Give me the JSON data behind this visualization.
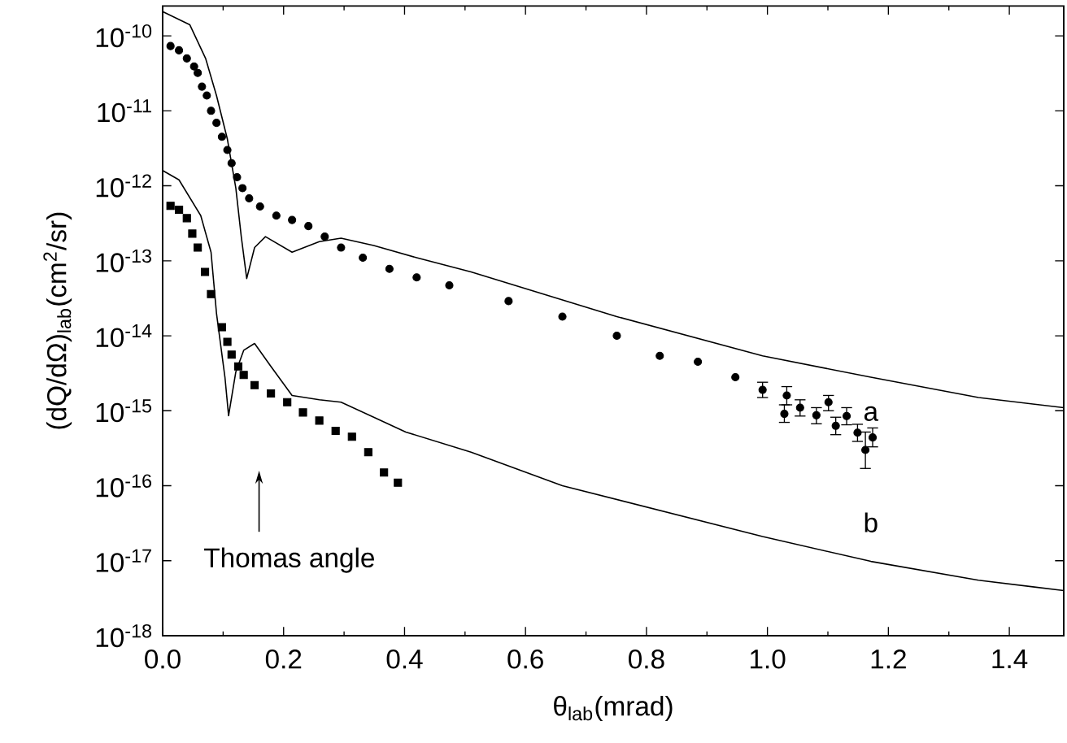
{
  "chart_data": {
    "type": "line",
    "xlabel": "θ$_{lab}$(mrad)",
    "ylabel": "(dQ/dΩ)$_{lab}$(cm$^{2}$/sr)",
    "log": "y",
    "xlim": [
      0,
      1.49
    ],
    "ylim": [
      1e-18,
      2.5e-10
    ],
    "xticks": [
      {
        "value": 0,
        "label": "0.0"
      },
      {
        "value": 0.2,
        "label": "0.2"
      },
      {
        "value": 0.4,
        "label": "0.4"
      },
      {
        "value": 0.6,
        "label": "0.6"
      },
      {
        "value": 0.8,
        "label": "0.8"
      },
      {
        "value": 1.0,
        "label": "1.0"
      },
      {
        "value": 1.2,
        "label": "1.2"
      },
      {
        "value": 1.4,
        "label": "1.4"
      }
    ],
    "yticks": [
      {
        "value": 1e-18,
        "label": "10$^{-18}$"
      },
      {
        "value": 1e-17,
        "label": "10$^{-17}$"
      },
      {
        "value": 1e-16,
        "label": "10$^{-16}$"
      },
      {
        "value": 1e-15,
        "label": "10$^{-15}$"
      },
      {
        "value": 1e-14,
        "label": "10$^{-14}$"
      },
      {
        "value": 1e-13,
        "label": "10$^{-13}$"
      },
      {
        "value": 1e-12,
        "label": "10$^{-12}$"
      },
      {
        "value": 1e-11,
        "label": "10$^{-11}$"
      },
      {
        "value": 1e-10,
        "label": "10$^{-10}$"
      }
    ],
    "series": [
      {
        "name": "a",
        "color": "#000000",
        "marker": "none",
        "x": [
          0,
          0.045,
          0.071,
          0.089,
          0.107,
          0.121,
          0.13,
          0.139,
          0.152,
          0.17,
          0.214,
          0.259,
          0.295,
          0.349,
          0.42,
          0.51,
          0.751,
          0.992,
          1.171,
          1.349,
          1.49
        ],
        "values": [
          2.1e-10,
          1.4e-10,
          5e-11,
          1.6e-11,
          4.2e-12,
          9.3e-13,
          2.1e-13,
          5.8e-14,
          1.5e-13,
          2.1e-13,
          1.3e-13,
          1.8e-13,
          2e-13,
          1.6e-13,
          1.1e-13,
          7.1e-14,
          1.8e-14,
          5.4e-15,
          2.8e-15,
          1.5e-15,
          1.1e-15
        ]
      },
      {
        "name": "b",
        "color": "#000000",
        "marker": "none",
        "x": [
          0,
          0.027,
          0.063,
          0.08,
          0.089,
          0.103,
          0.109,
          0.121,
          0.134,
          0.152,
          0.179,
          0.214,
          0.259,
          0.295,
          0.349,
          0.402,
          0.51,
          0.661,
          0.992,
          1.171,
          1.349,
          1.49
        ],
        "values": [
          1.6e-12,
          1.2e-12,
          4e-13,
          1.3e-13,
          2e-14,
          2.8e-15,
          8.6e-16,
          3.3e-15,
          6.4e-15,
          7.9e-15,
          3.9e-15,
          1.6e-15,
          1.4e-15,
          1.3e-15,
          8.2e-16,
          5.2e-16,
          2.8e-16,
          1e-16,
          2.1e-17,
          9.8e-18,
          5.5e-18,
          4e-18
        ]
      },
      {
        "type": "scatter",
        "color": "#000000",
        "marker": "circle",
        "x": [
          0.013,
          0.027,
          0.04,
          0.052,
          0.058,
          0.065,
          0.073,
          0.08,
          0.089,
          0.098,
          0.107,
          0.114,
          0.123,
          0.132,
          0.143,
          0.161,
          0.188,
          0.214,
          0.241,
          0.268,
          0.295,
          0.331,
          0.375,
          0.42,
          0.474,
          0.572,
          0.661,
          0.751,
          0.822,
          0.885,
          0.947,
          0.992,
          1.032,
          1.028,
          1.054,
          1.081,
          1.101,
          1.113,
          1.131,
          1.149,
          1.162,
          1.174
        ],
        "values": [
          7.3e-11,
          6.4e-11,
          5e-11,
          3.9e-11,
          3.2e-11,
          2.1e-11,
          1.6e-11,
          1e-11,
          6.9e-12,
          4.5e-12,
          3e-12,
          2e-12,
          1.3e-12,
          9.3e-13,
          6.8e-13,
          5.3e-13,
          4e-13,
          3.5e-13,
          2.9e-13,
          2.1e-13,
          1.5e-13,
          1.1e-13,
          7.8e-14,
          6e-14,
          4.7e-14,
          2.9e-14,
          1.8e-14,
          1e-14,
          5.4e-15,
          4.5e-15,
          2.8e-15,
          1.9e-15,
          1.6e-15,
          9.1e-16,
          1.1e-15,
          8.7e-16,
          1.3e-15,
          6.3e-16,
          8.5e-16,
          5.1e-16,
          3e-16,
          4.4e-16
        ],
        "errors": [
          null,
          null,
          null,
          null,
          null,
          null,
          null,
          null,
          null,
          null,
          null,
          null,
          null,
          null,
          null,
          null,
          null,
          null,
          null,
          null,
          null,
          null,
          null,
          null,
          null,
          null,
          null,
          null,
          null,
          null,
          null,
          [
            1.5e-15,
            2.4e-15
          ],
          [
            1.2e-15,
            2.1e-15
          ],
          [
            7e-16,
            1.2e-15
          ],
          [
            8.5e-16,
            1.4e-15
          ],
          [
            6.7e-16,
            1.1e-15
          ],
          [
            1e-15,
            1.6e-15
          ],
          [
            4.8e-16,
            8.2e-16
          ],
          [
            6.5e-16,
            1.1e-15
          ],
          [
            3.9e-16,
            6.6e-16
          ],
          [
            1.7e-16,
            5.2e-16
          ],
          [
            3.3e-16,
            5.9e-16
          ]
        ]
      },
      {
        "type": "scatter",
        "color": "#000000",
        "marker": "square",
        "x": [
          0.013,
          0.027,
          0.04,
          0.049,
          0.058,
          0.07,
          0.08,
          0.098,
          0.107,
          0.114,
          0.125,
          0.134,
          0.152,
          0.179,
          0.206,
          0.232,
          0.259,
          0.286,
          0.313,
          0.34,
          0.366,
          0.389
        ],
        "values": [
          5.4e-13,
          4.8e-13,
          3.7e-13,
          2.3e-13,
          1.5e-13,
          7.1e-14,
          3.6e-14,
          1.3e-14,
          8.3e-15,
          5.6e-15,
          3.9e-15,
          3e-15,
          2.2e-15,
          1.7e-15,
          1.3e-15,
          9.5e-16,
          7.4e-16,
          5.4e-16,
          4.5e-16,
          2.8e-16,
          1.5e-16,
          1.1e-16
        ]
      }
    ],
    "annotations": [
      "Thomas angle"
    ]
  }
}
